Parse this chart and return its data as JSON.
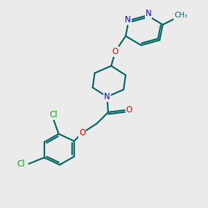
{
  "bg_color": "#ebebeb",
  "atom_colors": {
    "N": "#0000ee",
    "O": "#ee0000",
    "Cl": "#00aa00",
    "C": "#000000"
  },
  "bond_color": "#006666",
  "bond_width": 1.6,
  "font_size_atoms": 8.5,
  "fig_bg": "#ebebeb"
}
